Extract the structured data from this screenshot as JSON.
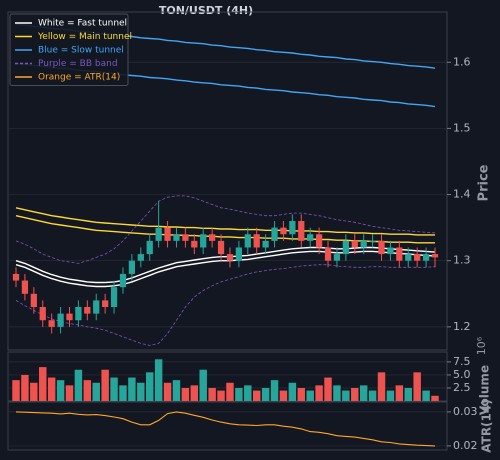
{
  "chart_data": [
    {
      "type": "candlestick",
      "title": "TON/USDT (4H)",
      "ylabel": "Price",
      "ylim": [
        1.165,
        1.676
      ],
      "yticks": [
        1.2,
        1.3,
        1.4,
        1.5,
        1.6
      ],
      "grid": true,
      "legend": "upper left",
      "up_color": "#26a69a",
      "down_color": "#ef5350",
      "open": [
        1.28,
        1.27,
        1.25,
        1.23,
        1.21,
        1.2,
        1.22,
        1.21,
        1.23,
        1.22,
        1.24,
        1.23,
        1.26,
        1.28,
        1.3,
        1.31,
        1.33,
        1.35,
        1.33,
        1.34,
        1.33,
        1.32,
        1.34,
        1.33,
        1.31,
        1.3,
        1.32,
        1.34,
        1.32,
        1.33,
        1.35,
        1.34,
        1.36,
        1.33,
        1.34,
        1.32,
        1.3,
        1.31,
        1.33,
        1.32,
        1.33,
        1.33,
        1.31,
        1.32,
        1.3,
        1.31,
        1.3,
        1.31
      ],
      "high": [
        1.29,
        1.28,
        1.26,
        1.24,
        1.22,
        1.23,
        1.23,
        1.24,
        1.24,
        1.25,
        1.25,
        1.27,
        1.29,
        1.31,
        1.32,
        1.34,
        1.39,
        1.36,
        1.35,
        1.35,
        1.34,
        1.35,
        1.35,
        1.34,
        1.32,
        1.33,
        1.35,
        1.35,
        1.34,
        1.36,
        1.36,
        1.37,
        1.37,
        1.35,
        1.35,
        1.33,
        1.32,
        1.34,
        1.34,
        1.34,
        1.34,
        1.34,
        1.33,
        1.33,
        1.32,
        1.32,
        1.32,
        1.32
      ],
      "low": [
        1.26,
        1.24,
        1.22,
        1.2,
        1.19,
        1.19,
        1.2,
        1.2,
        1.21,
        1.21,
        1.22,
        1.22,
        1.25,
        1.27,
        1.29,
        1.3,
        1.32,
        1.32,
        1.32,
        1.32,
        1.31,
        1.31,
        1.32,
        1.3,
        1.29,
        1.29,
        1.31,
        1.31,
        1.31,
        1.32,
        1.33,
        1.33,
        1.32,
        1.32,
        1.31,
        1.29,
        1.29,
        1.3,
        1.31,
        1.31,
        1.32,
        1.3,
        1.3,
        1.29,
        1.29,
        1.29,
        1.29,
        1.29
      ],
      "close": [
        1.27,
        1.25,
        1.23,
        1.21,
        1.2,
        1.22,
        1.21,
        1.23,
        1.22,
        1.24,
        1.23,
        1.26,
        1.28,
        1.3,
        1.31,
        1.33,
        1.35,
        1.33,
        1.34,
        1.33,
        1.32,
        1.34,
        1.33,
        1.31,
        1.3,
        1.32,
        1.34,
        1.32,
        1.33,
        1.35,
        1.34,
        1.36,
        1.33,
        1.34,
        1.32,
        1.3,
        1.31,
        1.33,
        1.32,
        1.33,
        1.33,
        1.31,
        1.32,
        1.3,
        1.31,
        1.3,
        1.31,
        1.305
      ],
      "lines": [
        {
          "name": "White = Fast tunnel",
          "color": "#ffffff",
          "linestyle": "solid",
          "upper": [
            1.3,
            1.296,
            1.29,
            1.284,
            1.279,
            1.275,
            1.272,
            1.27,
            1.268,
            1.267,
            1.267,
            1.268,
            1.27,
            1.274,
            1.279,
            1.284,
            1.289,
            1.293,
            1.297,
            1.299,
            1.301,
            1.303,
            1.305,
            1.306,
            1.306,
            1.307,
            1.308,
            1.31,
            1.312,
            1.314,
            1.316,
            1.318,
            1.319,
            1.32,
            1.32,
            1.319,
            1.318,
            1.318,
            1.319,
            1.32,
            1.32,
            1.319,
            1.318,
            1.317,
            1.316,
            1.315,
            1.314,
            1.313
          ],
          "lower": [
            1.294,
            1.29,
            1.284,
            1.278,
            1.273,
            1.269,
            1.266,
            1.264,
            1.262,
            1.261,
            1.261,
            1.262,
            1.264,
            1.268,
            1.273,
            1.278,
            1.283,
            1.287,
            1.291,
            1.293,
            1.295,
            1.297,
            1.299,
            1.3,
            1.3,
            1.301,
            1.302,
            1.304,
            1.306,
            1.308,
            1.31,
            1.312,
            1.313,
            1.314,
            1.314,
            1.313,
            1.312,
            1.312,
            1.313,
            1.314,
            1.314,
            1.313,
            1.312,
            1.311,
            1.31,
            1.309,
            1.308,
            1.307
          ]
        },
        {
          "name": "Yellow = Main tunnel",
          "color": "#fdd835",
          "linestyle": "solid",
          "upper": [
            1.38,
            1.377,
            1.374,
            1.371,
            1.368,
            1.366,
            1.364,
            1.362,
            1.36,
            1.358,
            1.357,
            1.356,
            1.355,
            1.354,
            1.353,
            1.352,
            1.352,
            1.351,
            1.351,
            1.35,
            1.35,
            1.349,
            1.349,
            1.348,
            1.348,
            1.347,
            1.347,
            1.347,
            1.346,
            1.346,
            1.346,
            1.345,
            1.345,
            1.345,
            1.344,
            1.344,
            1.343,
            1.343,
            1.342,
            1.342,
            1.341,
            1.341,
            1.34,
            1.34,
            1.34,
            1.339,
            1.339,
            1.339
          ],
          "lower": [
            1.368,
            1.365,
            1.362,
            1.359,
            1.356,
            1.354,
            1.352,
            1.35,
            1.348,
            1.346,
            1.345,
            1.344,
            1.343,
            1.342,
            1.341,
            1.34,
            1.34,
            1.339,
            1.339,
            1.338,
            1.338,
            1.337,
            1.337,
            1.336,
            1.336,
            1.335,
            1.335,
            1.335,
            1.334,
            1.334,
            1.334,
            1.333,
            1.333,
            1.333,
            1.332,
            1.332,
            1.331,
            1.331,
            1.33,
            1.33,
            1.329,
            1.329,
            1.328,
            1.328,
            1.328,
            1.327,
            1.327,
            1.327
          ]
        },
        {
          "name": "Blue = Slow tunnel",
          "color": "#42a5f5",
          "linestyle": "solid",
          "upper": [
            1.657,
            1.656,
            1.654,
            1.653,
            1.651,
            1.65,
            1.649,
            1.647,
            1.646,
            1.644,
            1.643,
            1.642,
            1.64,
            1.639,
            1.637,
            1.636,
            1.635,
            1.633,
            1.632,
            1.63,
            1.629,
            1.628,
            1.626,
            1.625,
            1.623,
            1.622,
            1.621,
            1.619,
            1.618,
            1.616,
            1.615,
            1.614,
            1.612,
            1.611,
            1.609,
            1.608,
            1.607,
            1.605,
            1.604,
            1.602,
            1.601,
            1.6,
            1.598,
            1.597,
            1.595,
            1.594,
            1.593,
            1.591
          ],
          "lower": [
            1.598,
            1.597,
            1.595,
            1.594,
            1.592,
            1.591,
            1.59,
            1.588,
            1.587,
            1.586,
            1.584,
            1.583,
            1.581,
            1.58,
            1.579,
            1.577,
            1.576,
            1.575,
            1.573,
            1.572,
            1.57,
            1.569,
            1.568,
            1.566,
            1.565,
            1.564,
            1.562,
            1.561,
            1.559,
            1.558,
            1.557,
            1.555,
            1.554,
            1.553,
            1.551,
            1.55,
            1.548,
            1.547,
            1.546,
            1.544,
            1.543,
            1.542,
            1.54,
            1.539,
            1.537,
            1.536,
            1.535,
            1.533
          ]
        },
        {
          "name": "Purple = BB band",
          "color": "#7e57c2",
          "linestyle": "dashed",
          "upper": [
            1.33,
            1.325,
            1.318,
            1.31,
            1.305,
            1.3,
            1.298,
            1.296,
            1.3,
            1.305,
            1.31,
            1.318,
            1.33,
            1.345,
            1.36,
            1.375,
            1.39,
            1.396,
            1.398,
            1.398,
            1.395,
            1.39,
            1.385,
            1.38,
            1.378,
            1.375,
            1.372,
            1.37,
            1.368,
            1.368,
            1.37,
            1.372,
            1.372,
            1.37,
            1.368,
            1.365,
            1.362,
            1.36,
            1.358,
            1.355,
            1.352,
            1.35,
            1.348,
            1.346,
            1.345,
            1.344,
            1.343,
            1.342
          ],
          "lower": [
            1.24,
            1.232,
            1.225,
            1.218,
            1.212,
            1.208,
            1.205,
            1.203,
            1.2,
            1.198,
            1.195,
            1.19,
            1.185,
            1.18,
            1.175,
            1.172,
            1.175,
            1.19,
            1.21,
            1.23,
            1.245,
            1.255,
            1.262,
            1.268,
            1.272,
            1.276,
            1.28,
            1.283,
            1.285,
            1.287,
            1.288,
            1.29,
            1.292,
            1.293,
            1.294,
            1.294,
            1.292,
            1.291,
            1.29,
            1.29,
            1.291,
            1.291,
            1.29,
            1.29,
            1.29,
            1.29,
            1.29,
            1.291
          ]
        }
      ]
    },
    {
      "type": "volume",
      "ylabel": "Volume",
      "exponent": "10⁶",
      "ylim": [
        0,
        9.4
      ],
      "yticks": [
        2.5,
        {
          "value": 5.0,
          "label": "5.0"
        },
        7.5
      ],
      "values": [
        4.0,
        5.0,
        3.5,
        6.5,
        4.5,
        4.0,
        3.0,
        6.0,
        4.0,
        3.5,
        6.0,
        4.5,
        3.0,
        4.5,
        3.5,
        5.5,
        8.0,
        3.5,
        4.0,
        2.5,
        3.0,
        6.0,
        2.5,
        2.0,
        3.5,
        2.5,
        3.0,
        2.0,
        2.5,
        4.0,
        2.0,
        3.5,
        2.5,
        2.0,
        3.0,
        4.5,
        3.0,
        2.0,
        2.5,
        3.0,
        2.0,
        5.5,
        2.0,
        3.0,
        2.5,
        5.5,
        2.0,
        1.0
      ]
    },
    {
      "type": "line",
      "ylabel": "ATR(14)",
      "ylim": [
        0.0188,
        0.0329
      ],
      "yticks": [
        0.02,
        0.03
      ],
      "series": [
        {
          "name": "Orange = ATR(14)",
          "color": "#ffa726",
          "values": [
            0.03,
            0.0299,
            0.0298,
            0.0297,
            0.0296,
            0.0294,
            0.0296,
            0.0293,
            0.0291,
            0.0292,
            0.0289,
            0.0285,
            0.028,
            0.027,
            0.0262,
            0.0262,
            0.0275,
            0.0295,
            0.03,
            0.0296,
            0.029,
            0.0284,
            0.0276,
            0.027,
            0.0265,
            0.0262,
            0.0261,
            0.026,
            0.0262,
            0.0262,
            0.0258,
            0.0255,
            0.025,
            0.0242,
            0.024,
            0.0236,
            0.023,
            0.0228,
            0.0226,
            0.0222,
            0.0218,
            0.0212,
            0.021,
            0.0206,
            0.0204,
            0.0202,
            0.0201,
            0.02
          ]
        }
      ]
    }
  ]
}
